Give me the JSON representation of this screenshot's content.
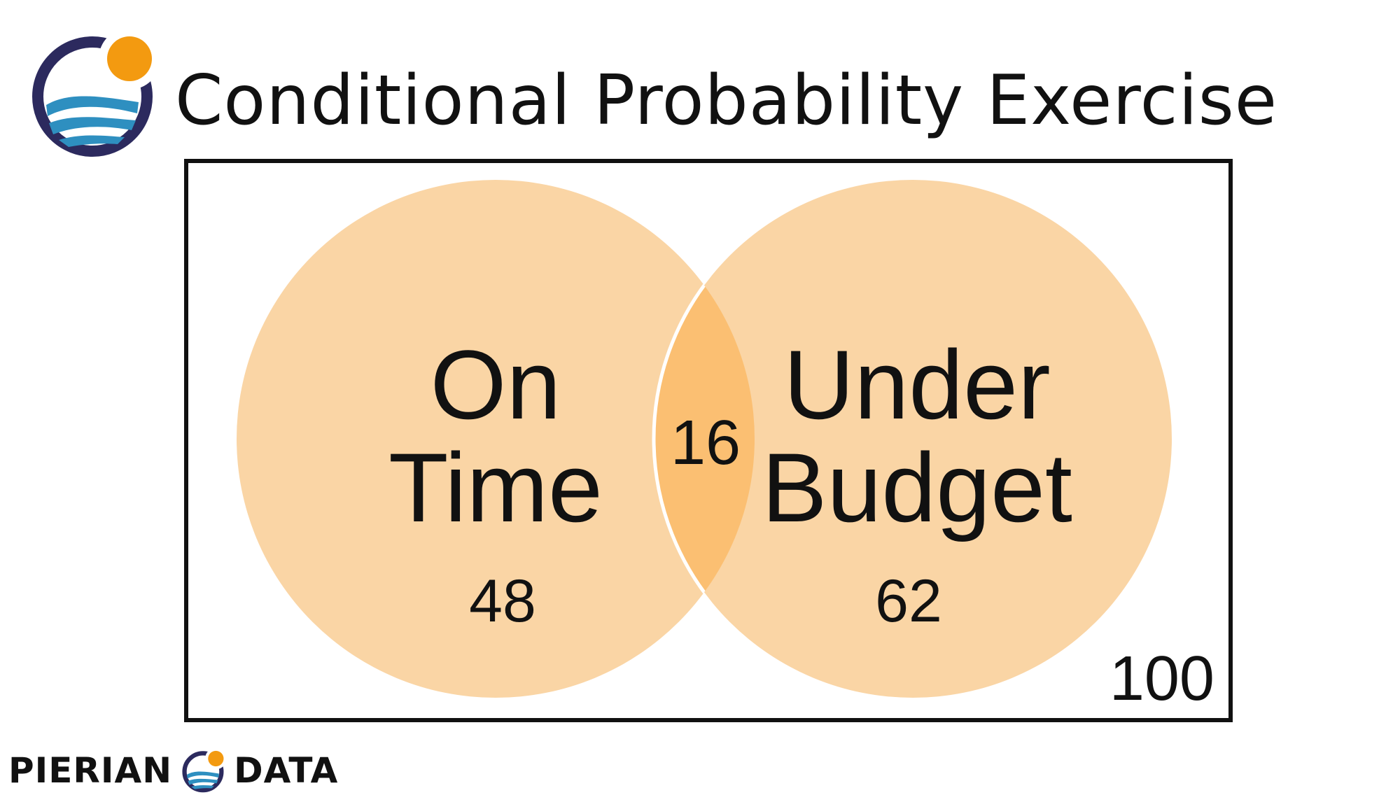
{
  "header": {
    "title": "Conditional Probability Exercise"
  },
  "venn": {
    "left_set": {
      "label_line1": "On",
      "label_line2": "Time",
      "count": "48"
    },
    "right_set": {
      "label_line1": "Under",
      "label_line2": "Budget",
      "count": "62"
    },
    "intersection": {
      "count": "16"
    },
    "total": "100",
    "colors": {
      "circle_fill": "#fad5a5",
      "overlap_fill": "#fbbf72",
      "outline": "#111111"
    }
  },
  "footer": {
    "brand_left": "PIERIAN",
    "brand_right": "DATA"
  },
  "logo": {
    "icon": "pierian-data-logo-icon",
    "colors": {
      "ring": "#2c2a5e",
      "sun": "#f39a10",
      "wave": "#2e8fc0"
    }
  }
}
